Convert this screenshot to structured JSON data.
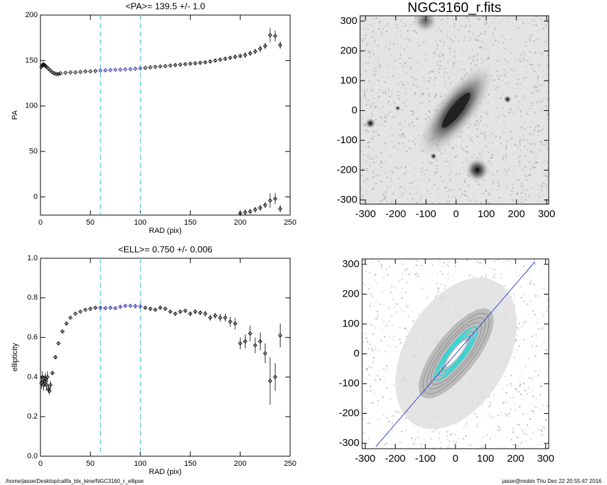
{
  "chart_data": [
    {
      "type": "scatter",
      "title": "<PA>= 139.5 +/-   1.0",
      "xlabel": "RAD (pix)",
      "ylabel": "PA",
      "xlim": [
        0,
        250
      ],
      "xticks": [
        0,
        50,
        100,
        150,
        200,
        250
      ],
      "ylim": [
        -20,
        200
      ],
      "yticks": [
        0,
        50,
        100,
        150,
        200
      ],
      "vlines": [
        60,
        100
      ],
      "vline_color": "#5bc8dc",
      "color": "#000000",
      "highlight_color": "#1a1aa8",
      "series": [
        {
          "x": [
            1,
            2,
            3,
            4,
            5,
            6,
            8,
            10,
            12,
            14,
            16,
            18,
            20,
            25,
            30,
            35,
            40,
            45,
            50,
            55,
            60,
            65,
            70,
            75,
            80,
            85,
            90,
            95,
            100,
            105,
            110,
            115,
            120,
            125,
            130,
            135,
            140,
            145,
            150,
            155,
            160,
            165,
            170,
            175,
            180,
            185,
            190,
            195,
            200,
            205,
            210,
            215,
            220,
            225,
            230,
            235,
            240,
            200,
            205,
            210,
            215,
            220,
            225,
            230,
            235,
            240
          ],
          "values": [
            143,
            145,
            146,
            145,
            144,
            143,
            141,
            139,
            137,
            136,
            135,
            135,
            136,
            136.5,
            137,
            137,
            137.5,
            138,
            138,
            138.5,
            139,
            139.2,
            139.5,
            139.8,
            140,
            140.3,
            140.6,
            141,
            141.3,
            142,
            142.5,
            143,
            143.5,
            144,
            144.5,
            145,
            145.5,
            146,
            146.5,
            147,
            147.5,
            148,
            149,
            150,
            151,
            152,
            153,
            154,
            155,
            156,
            158,
            160,
            163,
            166,
            178,
            177,
            167,
            -18,
            -17,
            -16,
            -14,
            -12,
            -9,
            -4,
            -2,
            -13
          ],
          "errors": [
            2,
            2,
            2,
            1.5,
            1.5,
            1,
            1,
            1,
            0.8,
            0.5,
            0.5,
            0.5,
            0.5,
            0.5,
            0.5,
            0.5,
            0.5,
            0.5,
            0.5,
            0.5,
            0.5,
            0.5,
            0.5,
            0.5,
            0.5,
            0.5,
            0.5,
            0.5,
            0.5,
            0.5,
            0.6,
            0.6,
            0.7,
            0.7,
            0.8,
            0.8,
            1,
            1,
            1,
            1.2,
            1.2,
            1.3,
            1.5,
            1.5,
            1.8,
            2,
            2,
            2.5,
            2.5,
            3,
            3,
            3,
            3.5,
            3.5,
            8,
            6,
            4,
            2.5,
            3,
            3,
            3,
            3.5,
            3.5,
            8,
            6,
            4
          ]
        }
      ]
    },
    {
      "type": "image",
      "title": "NGC3160_r.fits",
      "xlim": [
        -318,
        307
      ],
      "xticks": [
        -300,
        -200,
        -100,
        0,
        100,
        200,
        300
      ],
      "ylim": [
        -314,
        318
      ],
      "yticks": [
        -300,
        -200,
        -100,
        0,
        100,
        200,
        300
      ]
    },
    {
      "type": "scatter",
      "title": "<ELL>= 0.750 +/-  0.006",
      "xlabel": "RAD (pix)",
      "ylabel": "ellipticity",
      "xlim": [
        0,
        250
      ],
      "xticks": [
        0,
        50,
        100,
        150,
        200,
        250
      ],
      "ylim": [
        0,
        1
      ],
      "yticks": [
        {
          "value": 0,
          "label": "0.0"
        },
        0.2,
        0.4,
        0.6,
        0.8,
        {
          "value": 1,
          "label": "1.0"
        }
      ],
      "vlines": [
        60,
        100
      ],
      "vline_color": "#5bc8dc",
      "color": "#000000",
      "highlight_color": "#1a1aa8",
      "series": [
        {
          "x": [
            1,
            2,
            3,
            4,
            5,
            6,
            7,
            8,
            9,
            10,
            12,
            15,
            18,
            22,
            26,
            30,
            35,
            40,
            45,
            50,
            55,
            60,
            65,
            70,
            75,
            80,
            85,
            90,
            95,
            100,
            105,
            110,
            115,
            120,
            125,
            130,
            135,
            140,
            145,
            150,
            155,
            160,
            165,
            170,
            175,
            180,
            185,
            190,
            195,
            200,
            205,
            210,
            215,
            220,
            225,
            230,
            235,
            240
          ],
          "values": [
            0.37,
            0.4,
            0.36,
            0.38,
            0.39,
            0.36,
            0.4,
            0.34,
            0.33,
            0.36,
            0.42,
            0.5,
            0.57,
            0.63,
            0.67,
            0.7,
            0.72,
            0.73,
            0.74,
            0.745,
            0.75,
            0.75,
            0.748,
            0.75,
            0.748,
            0.755,
            0.76,
            0.76,
            0.758,
            0.757,
            0.75,
            0.745,
            0.74,
            0.75,
            0.745,
            0.73,
            0.72,
            0.73,
            0.735,
            0.72,
            0.73,
            0.725,
            0.72,
            0.7,
            0.71,
            0.7,
            0.7,
            0.68,
            0.67,
            0.57,
            0.58,
            0.62,
            0.56,
            0.58,
            0.52,
            0.38,
            0.4,
            0.61
          ],
          "errors": [
            0.03,
            0.03,
            0.03,
            0.03,
            0.03,
            0.03,
            0.03,
            0.02,
            0.02,
            0.02,
            0.01,
            0.01,
            0.005,
            0.005,
            0.005,
            0.004,
            0.004,
            0.004,
            0.004,
            0.004,
            0.004,
            0.004,
            0.004,
            0.004,
            0.004,
            0.004,
            0.004,
            0.004,
            0.005,
            0.005,
            0.005,
            0.006,
            0.006,
            0.007,
            0.008,
            0.008,
            0.01,
            0.01,
            0.01,
            0.012,
            0.012,
            0.012,
            0.015,
            0.015,
            0.015,
            0.02,
            0.02,
            0.025,
            0.03,
            0.03,
            0.035,
            0.04,
            0.04,
            0.045,
            0.05,
            0.12,
            0.07,
            0.06
          ]
        }
      ]
    },
    {
      "type": "image",
      "xlim": [
        -310,
        310
      ],
      "xticks": [
        -300,
        -200,
        -100,
        0,
        100,
        200,
        300
      ],
      "ylim": [
        -318,
        318
      ],
      "yticks": [
        -300,
        -200,
        -100,
        0,
        100,
        200,
        300
      ]
    }
  ],
  "footer": {
    "left": "/home/jasse/Desktop/califa_blx_kine/NGC3160_r_ellipse",
    "right": "jasse@mobix  Thu Dec 22 20:55:47 2016"
  }
}
